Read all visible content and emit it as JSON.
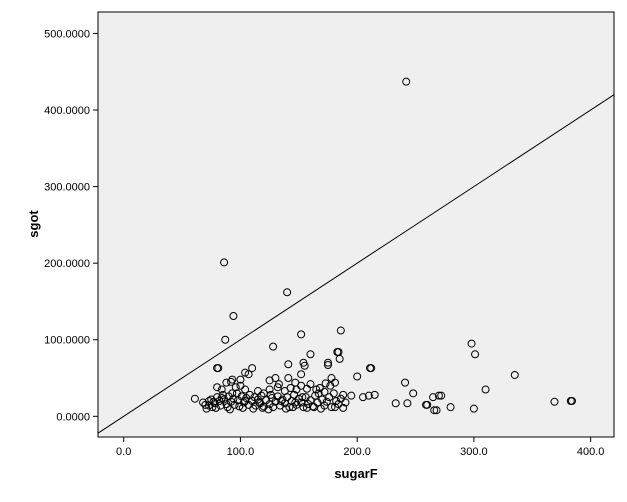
{
  "chart_data": {
    "type": "scatter",
    "title": "",
    "xlabel": "sugarF",
    "ylabel": "sgot",
    "xlim": [
      -22,
      420
    ],
    "ylim": [
      -27,
      528
    ],
    "x_ticks": [
      0,
      100,
      200,
      300,
      400
    ],
    "x_tick_labels": [
      "0.0",
      "100.0",
      "200.0",
      "300.0",
      "400.0"
    ],
    "y_ticks": [
      0,
      100,
      200,
      300,
      400,
      500
    ],
    "y_tick_labels": [
      "0.0000",
      "100.0000",
      "200.0000",
      "300.0000",
      "400.0000",
      "500.0000"
    ],
    "grid": false,
    "reference_line": {
      "type": "y=x"
    },
    "colors": {
      "plot_background": "#efefef",
      "marker_stroke": "#000000",
      "axis": "#000000"
    },
    "series": [
      {
        "marker": "open-circle",
        "points": [
          [
            242,
            437
          ],
          [
            86,
            201
          ],
          [
            140,
            162
          ],
          [
            94,
            131
          ],
          [
            152,
            107
          ],
          [
            186,
            112
          ],
          [
            87,
            100
          ],
          [
            128,
            91
          ],
          [
            298,
            95
          ],
          [
            301,
            81
          ],
          [
            160,
            81
          ],
          [
            183,
            84
          ],
          [
            184,
            84
          ],
          [
            185,
            75
          ],
          [
            80,
            63
          ],
          [
            81,
            63
          ],
          [
            110,
            63
          ],
          [
            141,
            68
          ],
          [
            154,
            70
          ],
          [
            155,
            66
          ],
          [
            175,
            70
          ],
          [
            175,
            67
          ],
          [
            211,
            63
          ],
          [
            212,
            63
          ],
          [
            335,
            54
          ],
          [
            104,
            57
          ],
          [
            107,
            55
          ],
          [
            152,
            55
          ],
          [
            130,
            50
          ],
          [
            141,
            50
          ],
          [
            178,
            50
          ],
          [
            200,
            52
          ],
          [
            125,
            47
          ],
          [
            93,
            48
          ],
          [
            100,
            48
          ],
          [
            92,
            45
          ],
          [
            88,
            44
          ],
          [
            133,
            42
          ],
          [
            147,
            44
          ],
          [
            160,
            42
          ],
          [
            168,
            37
          ],
          [
            173,
            43
          ],
          [
            177,
            40
          ],
          [
            181,
            44
          ],
          [
            241,
            44
          ],
          [
            310,
            35
          ],
          [
            80,
            38
          ],
          [
            84,
            35
          ],
          [
            96,
            38
          ],
          [
            100,
            40
          ],
          [
            104,
            35
          ],
          [
            115,
            33
          ],
          [
            120,
            30
          ],
          [
            125,
            35
          ],
          [
            132,
            38
          ],
          [
            138,
            33
          ],
          [
            143,
            37
          ],
          [
            148,
            35
          ],
          [
            152,
            40
          ],
          [
            157,
            36
          ],
          [
            165,
            35
          ],
          [
            172,
            32
          ],
          [
            180,
            30
          ],
          [
            188,
            28
          ],
          [
            195,
            27
          ],
          [
            205,
            25
          ],
          [
            210,
            27
          ],
          [
            215,
            28
          ],
          [
            248,
            30
          ],
          [
            265,
            25
          ],
          [
            270,
            27
          ],
          [
            272,
            27
          ],
          [
            61,
            23
          ],
          [
            68,
            18
          ],
          [
            70,
            15
          ],
          [
            73,
            20
          ],
          [
            75,
            22
          ],
          [
            76,
            12
          ],
          [
            78,
            17
          ],
          [
            80,
            25
          ],
          [
            82,
            20
          ],
          [
            83,
            14
          ],
          [
            85,
            28
          ],
          [
            86,
            22
          ],
          [
            88,
            16
          ],
          [
            89,
            12
          ],
          [
            90,
            26
          ],
          [
            92,
            19
          ],
          [
            94,
            23
          ],
          [
            95,
            15
          ],
          [
            97,
            30
          ],
          [
            98,
            21
          ],
          [
            99,
            13
          ],
          [
            101,
            26
          ],
          [
            103,
            18
          ],
          [
            105,
            24
          ],
          [
            107,
            15
          ],
          [
            108,
            28
          ],
          [
            110,
            20
          ],
          [
            112,
            25
          ],
          [
            113,
            14
          ],
          [
            115,
            22
          ],
          [
            117,
            17
          ],
          [
            118,
            27
          ],
          [
            120,
            13
          ],
          [
            122,
            21
          ],
          [
            125,
            16
          ],
          [
            127,
            24
          ],
          [
            128,
            12
          ],
          [
            130,
            19
          ],
          [
            132,
            26
          ],
          [
            134,
            14
          ],
          [
            136,
            22
          ],
          [
            138,
            17
          ],
          [
            140,
            25
          ],
          [
            142,
            12
          ],
          [
            144,
            20
          ],
          [
            146,
            28
          ],
          [
            148,
            15
          ],
          [
            150,
            23
          ],
          [
            152,
            18
          ],
          [
            154,
            12
          ],
          [
            156,
            25
          ],
          [
            158,
            16
          ],
          [
            160,
            21
          ],
          [
            162,
            13
          ],
          [
            164,
            27
          ],
          [
            166,
            18
          ],
          [
            170,
            22
          ],
          [
            172,
            14
          ],
          [
            174,
            19
          ],
          [
            176,
            25
          ],
          [
            178,
            12
          ],
          [
            182,
            20
          ],
          [
            184,
            16
          ],
          [
            186,
            23
          ],
          [
            188,
            11
          ],
          [
            190,
            18
          ],
          [
            233,
            17
          ],
          [
            243,
            17
          ],
          [
            259,
            15
          ],
          [
            260,
            15
          ],
          [
            266,
            8
          ],
          [
            268,
            8
          ],
          [
            280,
            12
          ],
          [
            300,
            10
          ],
          [
            369,
            19
          ],
          [
            383,
            20
          ],
          [
            384,
            20
          ],
          [
            73,
            14
          ],
          [
            79,
            11
          ],
          [
            91,
            9
          ],
          [
            102,
            11
          ],
          [
            111,
            10
          ],
          [
            119,
            11
          ],
          [
            124,
            9
          ],
          [
            139,
            10
          ],
          [
            145,
            12
          ],
          [
            157,
            11
          ],
          [
            163,
            12
          ],
          [
            169,
            10
          ],
          [
            181,
            12
          ],
          [
            71,
            10
          ],
          [
            77,
            19
          ],
          [
            84,
            24
          ],
          [
            93,
            30
          ],
          [
            104,
            20
          ],
          [
            116,
            18
          ],
          [
            126,
            28
          ],
          [
            135,
            20
          ],
          [
            147,
            18
          ],
          [
            153,
            25
          ],
          [
            167,
            30
          ]
        ]
      }
    ]
  }
}
